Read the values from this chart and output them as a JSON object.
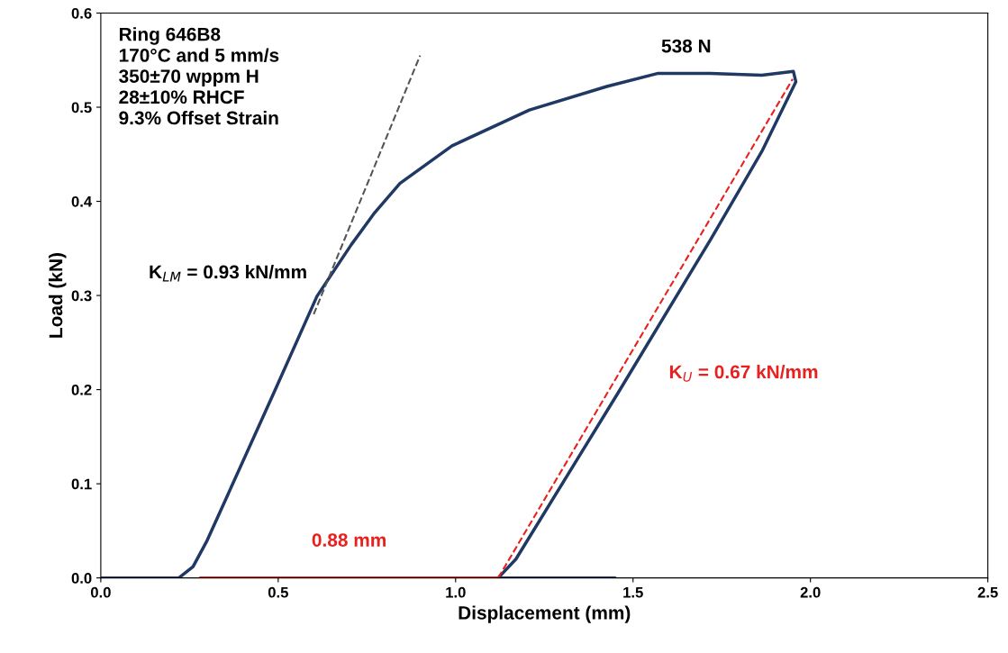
{
  "chart_data": {
    "type": "line",
    "xlabel": "Displacement (mm)",
    "ylabel": "Load (kN)",
    "xlim": [
      0,
      2.5
    ],
    "ylim": [
      0,
      0.6
    ],
    "xticks": [
      {
        "value": 0,
        "label": "0.0"
      },
      {
        "value": 0.5,
        "label": "0.5"
      },
      {
        "value": 1,
        "label": "1.0"
      },
      {
        "value": 1.5,
        "label": "1.5"
      },
      {
        "value": 2,
        "label": "2.0"
      },
      {
        "value": 2.5,
        "label": "2.5"
      }
    ],
    "yticks": [
      {
        "value": 0,
        "label": "0.0"
      },
      {
        "value": 0.1,
        "label": "0.1"
      },
      {
        "value": 0.2,
        "label": "0.2"
      },
      {
        "value": 0.3,
        "label": "0.3"
      },
      {
        "value": 0.4,
        "label": "0.4"
      },
      {
        "value": 0.5,
        "label": "0.5"
      },
      {
        "value": 0.6,
        "label": "0.6"
      }
    ],
    "grid": false,
    "legend": false,
    "series": [
      {
        "color": "#1f3864",
        "line_style": "solid",
        "x": [
          0,
          0.22,
          0.26,
          0.3,
          0.487,
          0.609,
          0.706,
          0.772,
          0.843,
          0.99,
          1.208,
          1.426,
          1.571,
          1.718,
          1.863,
          1.952,
          1.959,
          1.863,
          1.718,
          1.457,
          1.17,
          1.12,
          1.45
        ],
        "values": [
          0,
          0,
          0.012,
          0.04,
          0.196,
          0.299,
          0.354,
          0.388,
          0.419,
          0.459,
          0.497,
          0.522,
          0.536,
          0.536,
          0.534,
          0.538,
          0.527,
          0.453,
          0.359,
          0.196,
          0.02,
          0,
          0
        ]
      },
      {
        "color": "#555555",
        "line_style": "dashed",
        "x": [
          0.6,
          0.9
        ],
        "values": [
          0.28,
          0.555
        ]
      },
      {
        "color": "#e8201e",
        "line_style": "dashed",
        "x": [
          1.12,
          1.95
        ],
        "values": [
          0,
          0.53
        ]
      },
      {
        "color": "#e8201e",
        "line_style": "solid",
        "x": [
          0.28,
          1.12
        ],
        "values": [
          0,
          0
        ]
      }
    ],
    "annotations": [
      "Ring 646B8",
      "170°C and 5 mm/s",
      "350±70 wppm H",
      "28±10% RHCF",
      "9.3% Offset Strain",
      {
        "text": "538 N",
        "x": 1.65,
        "y": 0.538
      },
      {
        "text": "K$_{LM}$ = 0.93 kN/mm",
        "x": 0.6,
        "y": 0.29
      },
      {
        "text": "K$_{U}$ = 0.67 kN/mm",
        "x": 1.46,
        "y": 0.217
      },
      {
        "text": "0.88 mm",
        "x": 0.7,
        "y": 0
      }
    ]
  }
}
